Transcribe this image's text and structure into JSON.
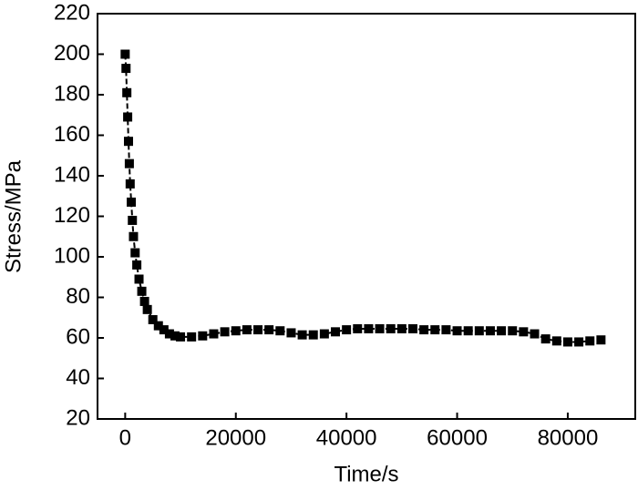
{
  "chart_data": {
    "type": "line",
    "x_label": "Time/s",
    "y_label": "Stress/MPa",
    "x": [
      0,
      150,
      300,
      450,
      600,
      750,
      900,
      1100,
      1300,
      1500,
      1800,
      2100,
      2500,
      3000,
      3500,
      4000,
      5000,
      6000,
      7000,
      8000,
      9000,
      10000,
      12000,
      14000,
      16000,
      18000,
      20000,
      22000,
      24000,
      26000,
      28000,
      30000,
      32000,
      34000,
      36000,
      38000,
      40000,
      42000,
      44000,
      46000,
      48000,
      50000,
      52000,
      54000,
      56000,
      58000,
      60000,
      62000,
      64000,
      66000,
      68000,
      70000,
      72000,
      74000,
      76000,
      78000,
      80000,
      82000,
      84000,
      86000
    ],
    "values": [
      200,
      193,
      181,
      169,
      157,
      146,
      136,
      127,
      118,
      110,
      102,
      96,
      89,
      83,
      78,
      74,
      69,
      66,
      64,
      62,
      61,
      60.5,
      60.5,
      61,
      62,
      63,
      63.5,
      64,
      64,
      64,
      63.5,
      62.5,
      61.5,
      61.5,
      62,
      63,
      64,
      64.5,
      64.5,
      64.5,
      64.5,
      64.5,
      64.5,
      64,
      64,
      64,
      63.5,
      63.5,
      63.5,
      63.5,
      63.5,
      63.5,
      63,
      62,
      59.5,
      58.5,
      58,
      58,
      58.5,
      59
    ],
    "color": "#000000",
    "marker": "square",
    "xlim": [
      -5000,
      92200
    ],
    "xticks": [
      0,
      20000,
      40000,
      60000,
      80000
    ],
    "ylim": [
      20,
      220
    ],
    "yticks": [
      20,
      40,
      60,
      80,
      100,
      120,
      140,
      160,
      180,
      200,
      220
    ]
  }
}
